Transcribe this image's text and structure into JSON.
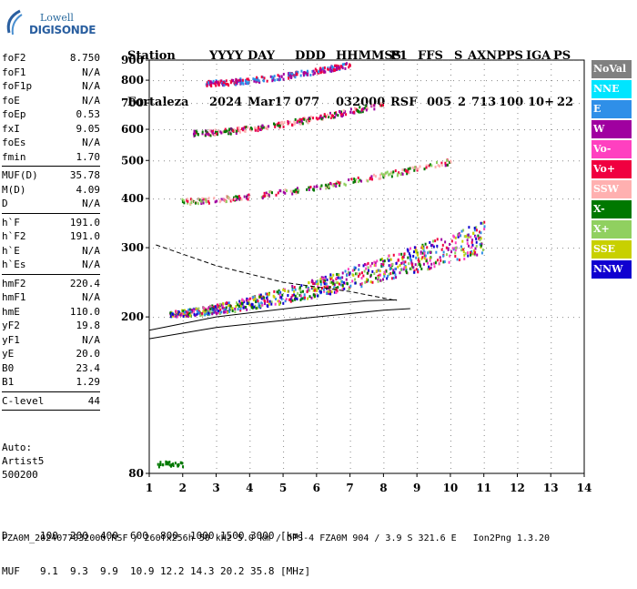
{
  "logo": {
    "line1": "Lowell",
    "line2": "DIGISONDE"
  },
  "header": {
    "row1": [
      "Station",
      "YYYY",
      "DAY",
      "DDD",
      "HHMMSS",
      "P1",
      "FFS",
      "S",
      "AXN",
      "PPS",
      "IGA",
      "PS"
    ],
    "row2": [
      "Fortaleza",
      "2024",
      "Mar17",
      "077",
      "032000",
      "RSF",
      "005",
      "2",
      "713",
      "100",
      "10+",
      "22"
    ]
  },
  "params_groups": [
    [
      [
        "foF2",
        "8.750"
      ],
      [
        "foF1",
        "N/A"
      ],
      [
        "foF1p",
        "N/A"
      ],
      [
        "foE",
        "N/A"
      ],
      [
        "foEp",
        "0.53"
      ],
      [
        "fxI",
        "9.05"
      ],
      [
        "foEs",
        "N/A"
      ],
      [
        "fmin",
        "1.70"
      ]
    ],
    [
      [
        "MUF(D)",
        "35.78"
      ],
      [
        "M(D)",
        "4.09"
      ],
      [
        "D",
        "N/A"
      ]
    ],
    [
      [
        "h`F",
        "191.0"
      ],
      [
        "h`F2",
        "191.0"
      ],
      [
        "h`E",
        "N/A"
      ],
      [
        "h`Es",
        "N/A"
      ]
    ],
    [
      [
        "hmF2",
        "220.4"
      ],
      [
        "hmF1",
        "N/A"
      ],
      [
        "hmE",
        "110.0"
      ],
      [
        "yF2",
        "19.8"
      ],
      [
        "yF1",
        "N/A"
      ],
      [
        "yE",
        "20.0"
      ],
      [
        "B0",
        "23.4"
      ],
      [
        "B1",
        "1.29"
      ]
    ],
    [
      [
        "C-level",
        "44"
      ]
    ]
  ],
  "auto": {
    "line1": "Auto:",
    "line2": "Artist5",
    "line3": "500200"
  },
  "muf_table": {
    "row1_label": "D",
    "row1_values": [
      "100",
      "200",
      "400",
      "600",
      "800",
      "1000",
      "1500",
      "3000"
    ],
    "row1_unit": "[km]",
    "row2_label": "MUF",
    "row2_values": [
      "9.1",
      "9.3",
      "9.9",
      "10.9",
      "12.2",
      "14.3",
      "20.2",
      "35.8"
    ],
    "row2_unit": "[MHz]"
  },
  "footer": "FZA0M_2024077032000.RSF / 260fx256h 50 kHz 5.0 km / DPS-4 FZA0M 904 / 3.9 S 321.6 E   Ion2Png 1.3.20",
  "legend": [
    {
      "label": "NoVal",
      "bg": "#808080",
      "fg": "#ffffff"
    },
    {
      "label": "NNE",
      "bg": "#00e5ff",
      "fg": "#ffffff"
    },
    {
      "label": "E",
      "bg": "#2f8fe8",
      "fg": "#ffffff"
    },
    {
      "label": "W",
      "bg": "#a000a0",
      "fg": "#ffffff"
    },
    {
      "label": "Vo-",
      "bg": "#ff40c0",
      "fg": "#ffffff"
    },
    {
      "label": "Vo+",
      "bg": "#f00040",
      "fg": "#ffffff"
    },
    {
      "label": "SSW",
      "bg": "#ffb0b0",
      "fg": "#ffffff"
    },
    {
      "label": "X-",
      "bg": "#007800",
      "fg": "#ffffff"
    },
    {
      "label": "X+",
      "bg": "#90d060",
      "fg": "#ffffff"
    },
    {
      "label": "SSE",
      "bg": "#c8d000",
      "fg": "#ffffff"
    },
    {
      "label": "NNW",
      "bg": "#1000d0",
      "fg": "#ffffff"
    }
  ],
  "chart_data": {
    "type": "scatter",
    "title": "",
    "xlabel": "",
    "ylabel": "",
    "xlim": [
      1,
      14
    ],
    "ylim_log": [
      80,
      900
    ],
    "y_scale": "log",
    "xticks": [
      1,
      2,
      3,
      4,
      5,
      6,
      7,
      8,
      9,
      10,
      11,
      12,
      13,
      14
    ],
    "yticks": [
      80,
      200,
      300,
      400,
      500,
      600,
      700,
      800,
      900
    ],
    "grid": true,
    "traces": [
      {
        "name": "F2 trace (1 hop)",
        "x_range": [
          1.6,
          11.0
        ],
        "y_start": 205,
        "y_end": 320,
        "colors": [
          "#f00040",
          "#a000a0",
          "#1000d0",
          "#ff40c0",
          "#2f8fe8",
          "#007800",
          "#90d060",
          "#c8d000"
        ]
      },
      {
        "name": "F2 trace (2 hop)",
        "x_range": [
          1.9,
          10.0
        ],
        "y_start": 395,
        "y_end": 500,
        "colors": [
          "#f00040",
          "#a000a0",
          "#007800",
          "#90d060",
          "#ffb0b0"
        ]
      },
      {
        "name": "F2 trace (3 hop)",
        "x_range": [
          2.3,
          8.0
        ],
        "y_start": 590,
        "y_end": 700,
        "colors": [
          "#f00040",
          "#a000a0",
          "#007800",
          "#ffb0b0"
        ]
      },
      {
        "name": "F2 trace (4 hop)",
        "x_range": [
          2.6,
          7.0
        ],
        "y_start": 790,
        "y_end": 880,
        "colors": [
          "#f00040",
          "#2f8fe8",
          "#a000a0"
        ]
      },
      {
        "name": "low E trace",
        "x_range": [
          1.2,
          2.0
        ],
        "y_start": 85,
        "y_end": 85,
        "colors": [
          "#007800"
        ]
      }
    ],
    "profile_lines": [
      {
        "name": "profile dashed",
        "x": [
          1.2,
          3.0,
          5.0,
          7.0,
          8.4
        ],
        "y": [
          305,
          270,
          245,
          232,
          220
        ]
      },
      {
        "name": "profile upper",
        "x": [
          1.0,
          3.0,
          5.5,
          7.5,
          8.4
        ],
        "y": [
          185,
          200,
          212,
          220,
          221
        ]
      },
      {
        "name": "profile lower",
        "x": [
          1.0,
          3.0,
          6.0,
          8.0,
          8.8
        ],
        "y": [
          176,
          188,
          200,
          208,
          210
        ]
      }
    ]
  }
}
